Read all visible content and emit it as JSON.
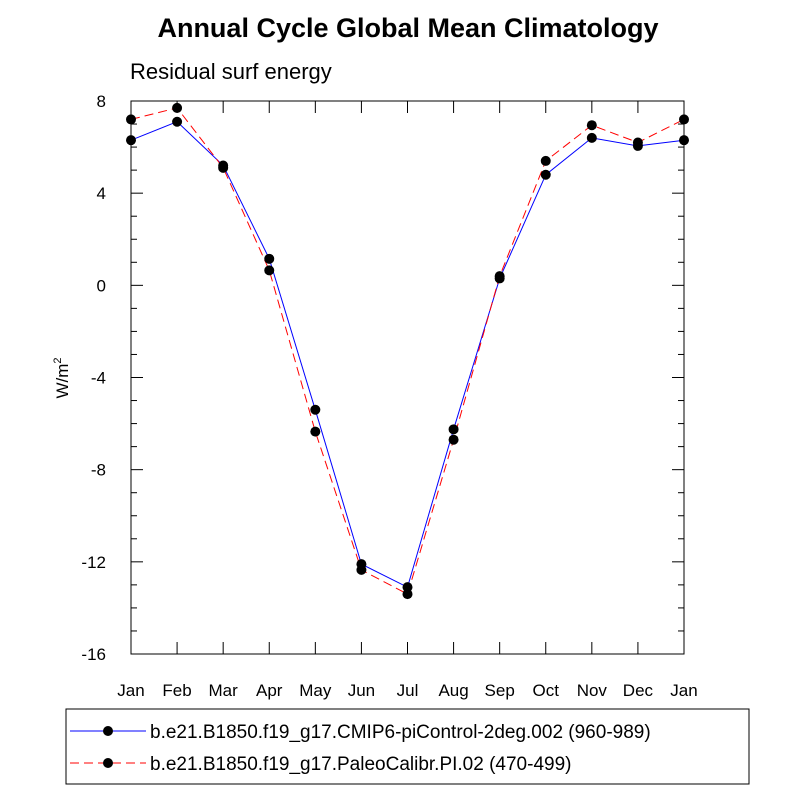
{
  "chart_data": {
    "type": "line",
    "title": "Annual Cycle Global Mean Climatology",
    "subtitle": "Residual surf energy",
    "ylabel": "W/m",
    "ylabel_superscript": "2",
    "xlabel": "",
    "ylim": [
      -16,
      8
    ],
    "yticks": [
      -16,
      -12,
      -8,
      -4,
      0,
      4,
      8
    ],
    "ytick_labels": [
      "-16",
      "-12",
      "-8",
      "-4",
      "0",
      "4",
      "8"
    ],
    "categories": [
      "Jan",
      "Feb",
      "Mar",
      "Apr",
      "May",
      "Jun",
      "Jul",
      "Aug",
      "Sep",
      "Oct",
      "Nov",
      "Dec",
      "Jan"
    ],
    "series": [
      {
        "name": "b.e21.B1850.f19_g17.CMIP6-piControl-2deg.002 (960-989)",
        "color": "#0000ff",
        "dash": "solid",
        "values": [
          6.3,
          7.1,
          5.2,
          1.15,
          -5.4,
          -12.1,
          -13.1,
          -6.25,
          0.3,
          4.8,
          6.4,
          6.05,
          6.3
        ]
      },
      {
        "name": "b.e21.B1850.f19_g17.PaleoCalibr.PI.02 (470-499)",
        "color": "#ff0000",
        "dash": "dashed",
        "values": [
          7.2,
          7.7,
          5.1,
          0.65,
          -6.35,
          -12.35,
          -13.4,
          -6.7,
          0.4,
          5.4,
          6.95,
          6.2,
          7.2
        ]
      }
    ],
    "legend_position": "bottom"
  }
}
